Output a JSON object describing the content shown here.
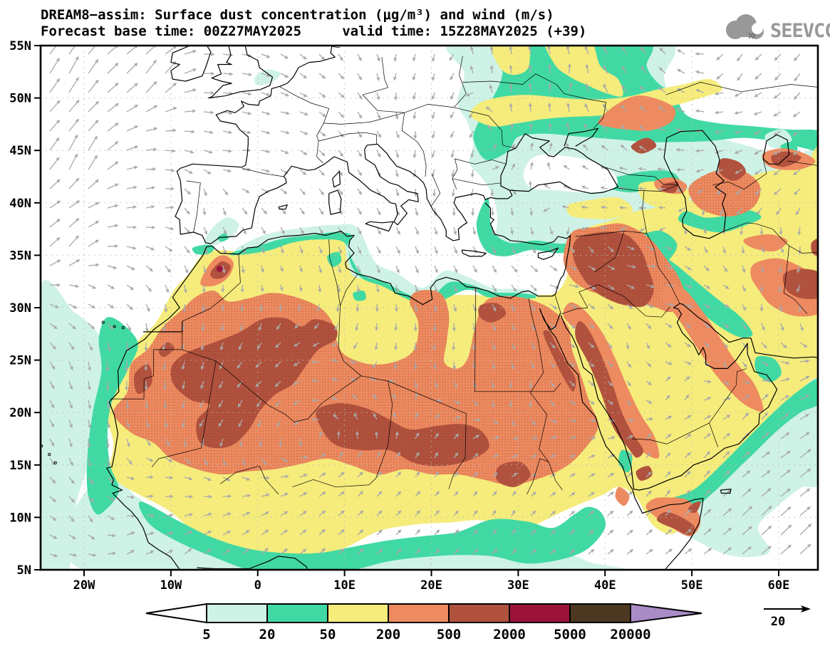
{
  "header": {
    "title_line1": "DREAM8−assim: Surface dust concentration (μg/m³) and wind (m/s)",
    "title_line2": "Forecast base time: 00Z27MAY2025     valid time: 15Z28MAY2025 (+39)",
    "logo_text": "SEEVCCC"
  },
  "map": {
    "lat_labels": [
      "55N",
      "50N",
      "45N",
      "40N",
      "35N",
      "30N",
      "25N",
      "20N",
      "15N",
      "10N",
      "5N"
    ],
    "lon_labels": [
      "20W",
      "10W",
      "0",
      "10E",
      "20E",
      "30E",
      "40E",
      "50E",
      "60E"
    ]
  },
  "colorbar": {
    "levels": [
      "5",
      "20",
      "50",
      "200",
      "500",
      "2000",
      "5000",
      "20000"
    ],
    "below_color": "#ffffff",
    "segment_colors": [
      "#cef2e6",
      "#41d9a3",
      "#f5ec7c",
      "#ee8a5f",
      "#b1523e",
      "#9c1339",
      "#4c3721"
    ],
    "above_color": "#a98cc6"
  },
  "wind_legend": {
    "value": "20"
  },
  "field_colors": {
    "cyan": "#cef2e6",
    "teal": "#41d9a3",
    "yellow": "#f5ec7c",
    "orange": "#ee8a5f",
    "brick": "#b1523e",
    "maroon": "#9c1339",
    "arrow": "#a9a9a9",
    "coast": "#000000"
  }
}
